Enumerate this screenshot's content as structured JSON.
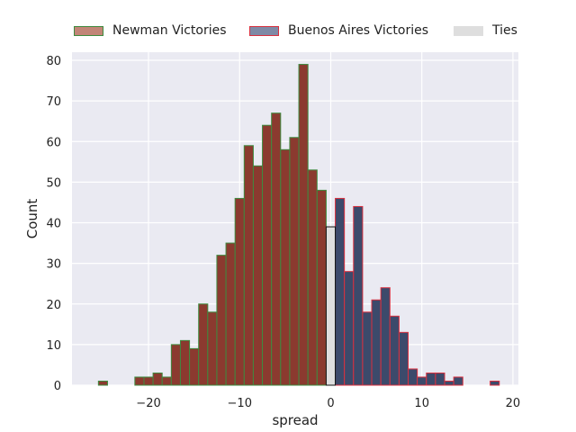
{
  "chart_data": {
    "type": "bar",
    "xlabel": "spread",
    "ylabel": "Count",
    "xlim": [
      -28.4,
      20.6
    ],
    "ylim": [
      0,
      82
    ],
    "xticks": [
      -20,
      -10,
      0,
      10,
      20
    ],
    "xtick_labels": [
      "−20",
      "−10",
      "0",
      "10",
      "20"
    ],
    "yticks": [
      0,
      10,
      20,
      30,
      40,
      50,
      60,
      70,
      80
    ],
    "ytick_labels": [
      "0",
      "10",
      "20",
      "30",
      "40",
      "50",
      "60",
      "70",
      "80"
    ],
    "grid": true,
    "legend_position": "top",
    "bin_width": 1,
    "series": [
      {
        "name": "Newman Victories",
        "fill": "#8b3a2f",
        "edge": "#3f8a3f",
        "legend_fill": "#c28577",
        "points": [
          {
            "x": -25,
            "y": 1
          },
          {
            "x": -21,
            "y": 2
          },
          {
            "x": -20,
            "y": 2
          },
          {
            "x": -19,
            "y": 3
          },
          {
            "x": -18,
            "y": 2
          },
          {
            "x": -17,
            "y": 10
          },
          {
            "x": -16,
            "y": 11
          },
          {
            "x": -15,
            "y": 9
          },
          {
            "x": -14,
            "y": 20
          },
          {
            "x": -13,
            "y": 18
          },
          {
            "x": -12,
            "y": 32
          },
          {
            "x": -11,
            "y": 35
          },
          {
            "x": -10,
            "y": 46
          },
          {
            "x": -9,
            "y": 59
          },
          {
            "x": -8,
            "y": 54
          },
          {
            "x": -7,
            "y": 64
          },
          {
            "x": -6,
            "y": 67
          },
          {
            "x": -5,
            "y": 58
          },
          {
            "x": -4,
            "y": 61
          },
          {
            "x": -3,
            "y": 79
          },
          {
            "x": -2,
            "y": 53
          },
          {
            "x": -1,
            "y": 48
          }
        ]
      },
      {
        "name": "Buenos Aires Victories",
        "fill": "#3c4a6b",
        "edge": "#d9313f",
        "legend_fill": "#7f8aa6",
        "points": [
          {
            "x": 1,
            "y": 46
          },
          {
            "x": 2,
            "y": 28
          },
          {
            "x": 3,
            "y": 44
          },
          {
            "x": 4,
            "y": 18
          },
          {
            "x": 5,
            "y": 21
          },
          {
            "x": 6,
            "y": 24
          },
          {
            "x": 7,
            "y": 17
          },
          {
            "x": 8,
            "y": 13
          },
          {
            "x": 9,
            "y": 4
          },
          {
            "x": 10,
            "y": 2
          },
          {
            "x": 11,
            "y": 3
          },
          {
            "x": 12,
            "y": 3
          },
          {
            "x": 13,
            "y": 1
          },
          {
            "x": 14,
            "y": 2
          },
          {
            "x": 18,
            "y": 1
          }
        ]
      },
      {
        "name": "Ties",
        "fill": "#dedede",
        "edge": "#111111",
        "legend_fill": "#dedede",
        "points": [
          {
            "x": 0,
            "y": 39
          }
        ]
      }
    ]
  },
  "colors": {
    "plot_background": "#eaeaf2",
    "grid": "#ffffff"
  }
}
